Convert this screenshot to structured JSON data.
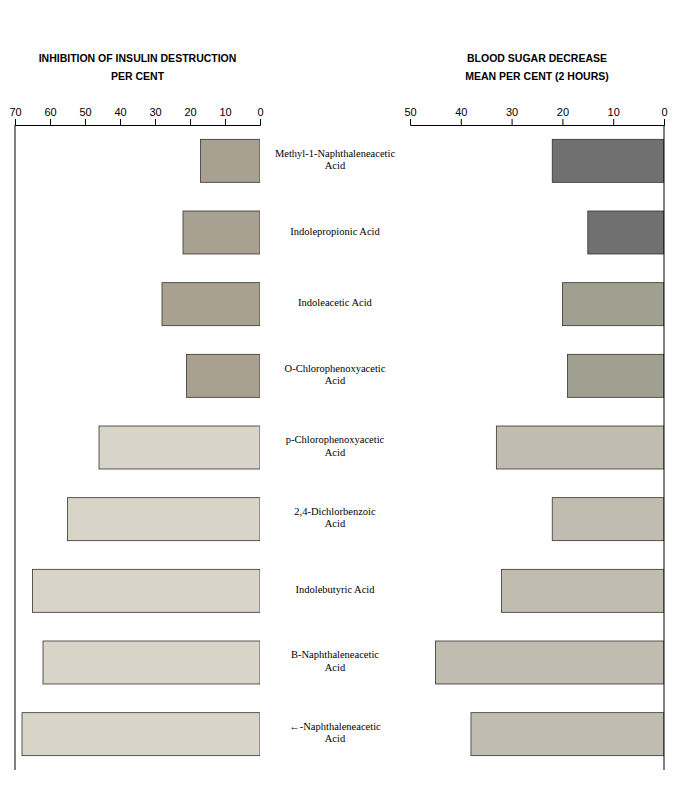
{
  "chart_data": [
    {
      "type": "bar",
      "orientation": "horizontal",
      "title": "INHIBITION OF INSULIN DESTRUCTION",
      "subtitle": "PER CENT",
      "categories": [
        "Methyl-1-Naphthaleneacetic\nAcid",
        "Indolepropionic Acid",
        "Indoleacetic Acid",
        "O-Chlorophenoxyacetic\nAcid",
        "p-Chlorophenoxyacetic\nAcid",
        "2,4-Dichlorbenzoic\nAcid",
        "Indolebutyric Acid",
        "B-Naphthaleneacetic\nAcid",
        "←-Naphthaleneacetic\nAcid"
      ],
      "values": [
        17,
        22,
        28,
        21,
        46,
        55,
        65,
        62,
        68
      ],
      "colors": [
        "#a8a090",
        "#a8a090",
        "#a8a090",
        "#a8a090",
        "#d8d4c8",
        "#d8d4c8",
        "#d8d4c8",
        "#d8d4c8",
        "#d8d4c8"
      ],
      "xlim": [
        70,
        0
      ],
      "xticks": [
        0,
        10,
        20,
        30,
        40,
        50,
        60,
        70
      ],
      "grid": false
    },
    {
      "type": "bar",
      "orientation": "horizontal",
      "title": "BLOOD SUGAR DECREASE",
      "subtitle": "MEAN PER CENT (2 HOURS)",
      "categories": [
        "Methyl-1-Naphthaleneacetic\nAcid",
        "Indolepropionic Acid",
        "Indoleacetic Acid",
        "O-Chlorophenoxyacetic\nAcid",
        "p-Chlorophenoxyacetic\nAcid",
        "2,4-Dichlorbenzoic\nAcid",
        "Indolebutyric Acid",
        "B-Naphthaleneacetic\nAcid",
        "←-Naphthaleneacetic\nAcid"
      ],
      "values": [
        22,
        15,
        20,
        19,
        33,
        22,
        32,
        45,
        38
      ],
      "colors": [
        "#707070",
        "#707070",
        "#a0a090",
        "#a0a090",
        "#c0bdb0",
        "#c0bdb0",
        "#c0bdb0",
        "#c0bdb0",
        "#c0bdb0"
      ],
      "xlim": [
        50,
        0
      ],
      "xticks": [
        0,
        10,
        20,
        30,
        40,
        50
      ],
      "grid": false
    }
  ]
}
